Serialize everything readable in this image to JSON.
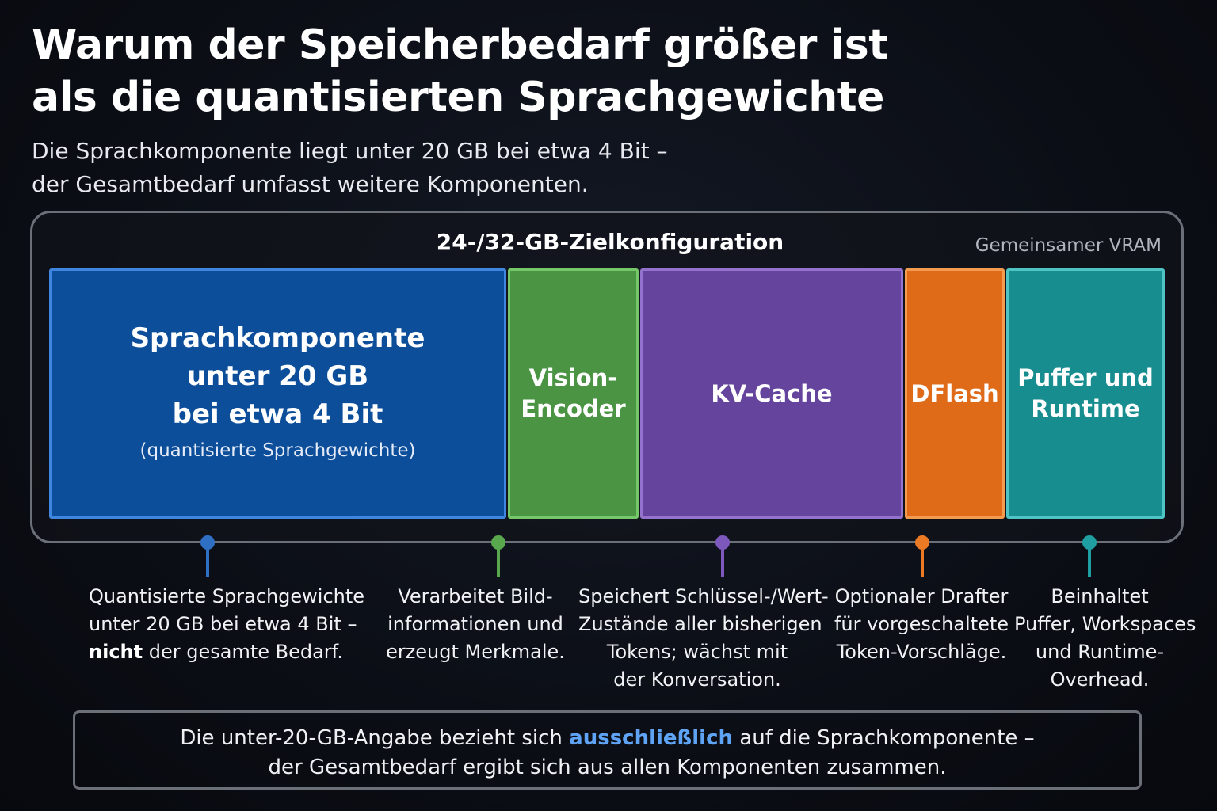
{
  "header": {
    "title_line1": "Warum der Speicherbedarf größer ist",
    "title_line2": "als die quantisierten Sprachgewichte",
    "subtitle_line1": "Die Sprachkomponente liegt unter 20 GB bei etwa 4 Bit –",
    "subtitle_line2": "der Gesamtbedarf umfasst weitere Komponenten."
  },
  "frame": {
    "title": "24-/32-GB-Zielkonfiguration",
    "tag": "Gemeinsamer VRAM"
  },
  "blocks": [
    {
      "id": "sprachkomponente",
      "lines": [
        "Sprachkomponente",
        "unter 20 GB",
        "bei etwa 4 Bit"
      ],
      "sublabel": "(quantisierte Sprachgewichte)",
      "color": "#0d4e9a"
    },
    {
      "id": "vision-encoder",
      "lines": [
        "Vision-",
        "Encoder"
      ],
      "color": "#4a9444"
    },
    {
      "id": "kv-cache",
      "lines": [
        "KV-Cache"
      ],
      "color": "#64449d"
    },
    {
      "id": "dflash",
      "lines": [
        "DFlash"
      ],
      "color": "#df6b19"
    },
    {
      "id": "puffer-runtime",
      "lines": [
        "Puffer und",
        "Runtime"
      ],
      "color": "#178d8f"
    }
  ],
  "descriptions": [
    {
      "lines": [
        "Quantisierte Sprachgewichte",
        "unter 20 GB bei etwa 4 Bit –"
      ],
      "emph": "nicht",
      "rest": " der gesamte Bedarf.",
      "color": "#2f6fc4"
    },
    {
      "lines": [
        "Verarbeitet Bild-",
        "informationen und",
        "erzeugt Merkmale."
      ],
      "color": "#5aa84e"
    },
    {
      "lines": [
        "Speichert Schlüssel-/Wert-",
        "Zustände aller bisherigen",
        "Tokens; wächst mit",
        "der Konversation."
      ],
      "color": "#7e59bd"
    },
    {
      "lines": [
        "Optionaler Drafter",
        "für vorgeschaltete",
        "Token-Vorschläge."
      ],
      "color": "#ec7a25"
    },
    {
      "lines": [
        "Beinhaltet",
        "Puffer, Workspaces",
        "und Runtime-",
        "Overhead."
      ],
      "color": "#1f9fa1"
    }
  ],
  "note": {
    "before": "Die unter-20-GB-Angabe bezieht sich ",
    "highlight": "ausschließlich",
    "after": " auf die Sprachkomponente –",
    "line2": "der Gesamtbedarf ergibt sich aus allen Komponenten zusammen.",
    "highlight_color": "#5fa3f5"
  }
}
